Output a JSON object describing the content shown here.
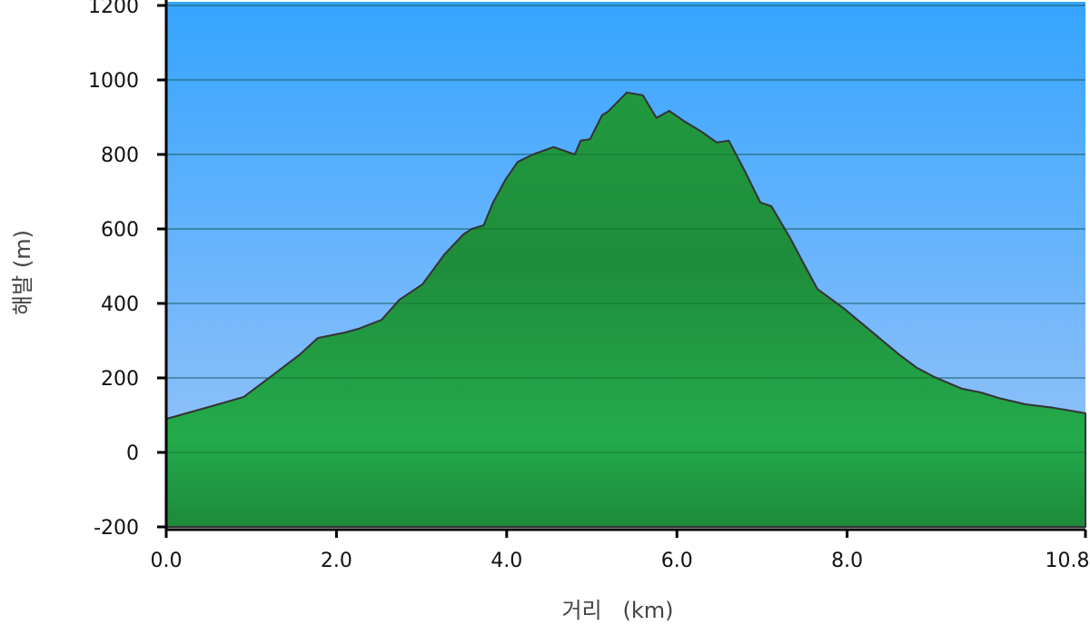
{
  "chart_data": {
    "type": "area",
    "title": "",
    "xlabel": "거리   (km)",
    "ylabel": "해발 (m)",
    "xlim": [
      0,
      10.8
    ],
    "ylim": [
      -200,
      1200
    ],
    "x_ticks": [
      "0.0",
      "2.0",
      "4.0",
      "6.0",
      "8.0",
      "10.8"
    ],
    "x_tick_values": [
      0,
      2,
      4,
      6,
      8,
      10.8
    ],
    "y_ticks": [
      "1200",
      "1000",
      "800",
      "600",
      "400",
      "200",
      "0",
      "-200"
    ],
    "y_tick_values": [
      1200,
      1000,
      800,
      600,
      400,
      200,
      0,
      -200
    ],
    "grid": true,
    "colors": {
      "sky_top": "#35a4ff",
      "sky_bottom": "#a0c6f8",
      "terrain": "#22a84a",
      "outline": "#333333"
    },
    "series": [
      {
        "x": [
          0,
          0.5,
          0.91,
          1.25,
          1.57,
          1.78,
          2.1,
          2.26,
          2.53,
          2.74,
          3.01,
          3.27,
          3.49,
          3.59,
          3.73,
          3.84,
          3.99,
          4.13,
          4.31,
          4.55,
          4.8,
          4.87,
          4.98,
          5.12,
          5.19,
          5.41,
          5.6,
          5.76,
          5.91,
          6.08,
          6.29,
          6.47,
          6.61,
          6.79,
          6.98,
          7.11,
          7.33,
          7.49,
          7.65,
          7.97,
          8.29,
          8.61,
          8.82,
          9.03,
          9.35,
          9.57,
          9.78,
          10.1,
          10.42,
          10.8
        ],
        "y": [
          90,
          122,
          149,
          207,
          263,
          307,
          322,
          332,
          356,
          410,
          451,
          532,
          585,
          600,
          610,
          671,
          734,
          780,
          800,
          820,
          800,
          837,
          841,
          905,
          915,
          966,
          959,
          898,
          917,
          890,
          861,
          832,
          837,
          759,
          671,
          661,
          576,
          507,
          439,
          385,
          324,
          263,
          227,
          202,
          171,
          161,
          146,
          129,
          120,
          105
        ]
      }
    ]
  }
}
